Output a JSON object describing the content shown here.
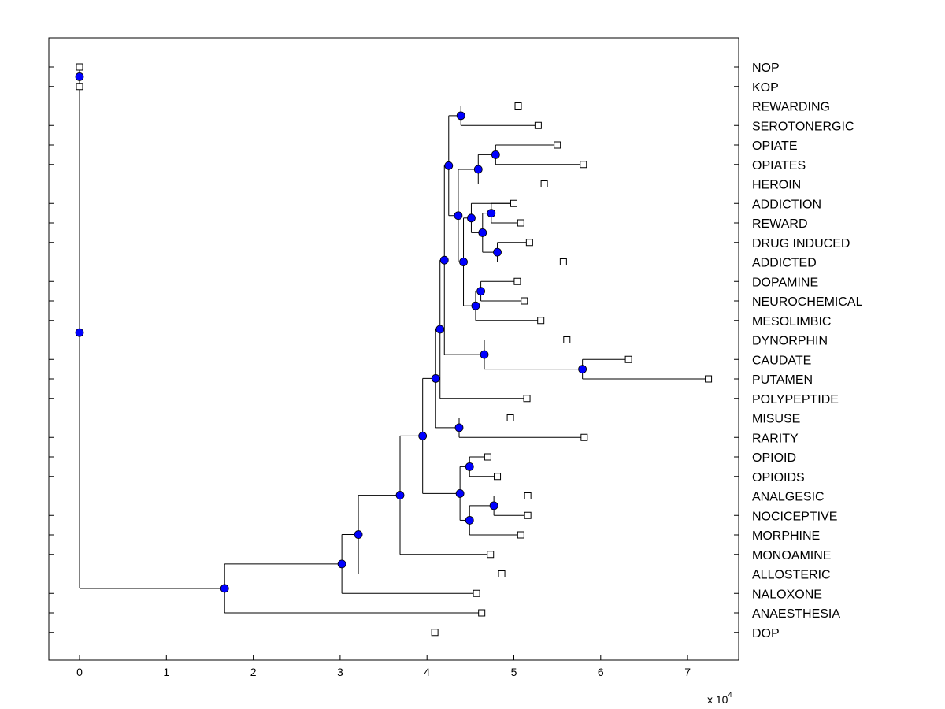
{
  "colors": {
    "node_fill": "#0000ff",
    "line": "#000000",
    "background": "#ffffff"
  },
  "chart_data": {
    "type": "dendrogram",
    "title": "",
    "xlabel": "",
    "ylabel": "",
    "x_scale_label": {
      "base": "x 10",
      "exponent": "4"
    },
    "xlim": [
      -0.35,
      7.6
    ],
    "x_ticks": [
      0,
      1,
      2,
      3,
      4,
      5,
      6,
      7
    ],
    "grid": false,
    "leaves": [
      {
        "label": "NOP",
        "x": 0.0
      },
      {
        "label": "KOP",
        "x": 0.0
      },
      {
        "label": "REWARDING",
        "x": 5.05
      },
      {
        "label": "SEROTONERGIC",
        "x": 5.28
      },
      {
        "label": "OPIATE",
        "x": 5.5
      },
      {
        "label": "OPIATES",
        "x": 5.8
      },
      {
        "label": "HEROIN",
        "x": 5.35
      },
      {
        "label": "ADDICTION",
        "x": 5.0
      },
      {
        "label": "REWARD",
        "x": 5.08
      },
      {
        "label": "DRUG INDUCED",
        "x": 5.18
      },
      {
        "label": "ADDICTED",
        "x": 5.57
      },
      {
        "label": "DOPAMINE",
        "x": 5.04
      },
      {
        "label": "NEUROCHEMICAL",
        "x": 5.12
      },
      {
        "label": "MESOLIMBIC",
        "x": 5.31
      },
      {
        "label": "DYNORPHIN",
        "x": 5.61
      },
      {
        "label": "CAUDATE",
        "x": 6.32
      },
      {
        "label": "PUTAMEN",
        "x": 7.24
      },
      {
        "label": "POLYPEPTIDE",
        "x": 5.15
      },
      {
        "label": "MISUSE",
        "x": 4.96
      },
      {
        "label": "RARITY",
        "x": 5.81
      },
      {
        "label": "OPIOID",
        "x": 4.7
      },
      {
        "label": "OPIOIDS",
        "x": 4.81
      },
      {
        "label": "ANALGESIC",
        "x": 5.16
      },
      {
        "label": "NOCICEPTIVE",
        "x": 5.16
      },
      {
        "label": "MORPHINE",
        "x": 5.08
      },
      {
        "label": "MONOAMINE",
        "x": 4.73
      },
      {
        "label": "ALLOSTERIC",
        "x": 4.86
      },
      {
        "label": "NALOXONE",
        "x": 4.57
      },
      {
        "label": "ANAESTHESIA",
        "x": 4.63
      },
      {
        "label": "DOP",
        "x": 4.09
      }
    ],
    "nodes": [
      {
        "id": "n_nop_kop",
        "x": 0.0,
        "children": [
          "L0",
          "L1"
        ]
      },
      {
        "id": "n_rew_ser",
        "x": 4.39,
        "children": [
          "L2",
          "L3"
        ]
      },
      {
        "id": "n_opiate_opiates",
        "x": 4.79,
        "children": [
          "L4",
          "L5"
        ]
      },
      {
        "id": "n_op_heroin",
        "x": 4.59,
        "children": [
          "n_opiate_opiates",
          "L6"
        ]
      },
      {
        "id": "n_rew_add",
        "x": 4.74,
        "children": [
          "L7",
          "L8"
        ]
      },
      {
        "id": "n_drug_addicted",
        "x": 4.81,
        "children": [
          "L9",
          "L10"
        ]
      },
      {
        "id": "n_addiction_group",
        "x": 4.64,
        "children": [
          "n_rew_add",
          "n_drug_addicted"
        ]
      },
      {
        "id": "n_addiction_parent",
        "x": 4.51,
        "children": [
          "L7",
          "n_addiction_group"
        ]
      },
      {
        "id": "n_dop_neuro",
        "x": 4.62,
        "children": [
          "L11",
          "L12"
        ]
      },
      {
        "id": "n_dop_meso",
        "x": 4.56,
        "children": [
          "n_dop_neuro",
          "L13"
        ]
      },
      {
        "id": "n_add_dop",
        "x": 4.42,
        "children": [
          "n_addiction_parent",
          "n_dop_meso"
        ]
      },
      {
        "id": "n_heroin_group",
        "x": 4.36,
        "children": [
          "n_op_heroin",
          "n_add_dop"
        ]
      },
      {
        "id": "n_rew_top",
        "x": 4.25,
        "children": [
          "n_rew_ser",
          "n_heroin_group"
        ]
      },
      {
        "id": "n_caud_put",
        "x": 5.79,
        "children": [
          "L15",
          "L16"
        ]
      },
      {
        "id": "n_dyn_caud",
        "x": 4.66,
        "children": [
          "L14",
          "n_caud_put"
        ]
      },
      {
        "id": "n_upper",
        "x": 4.2,
        "children": [
          "n_rew_top",
          "n_dyn_caud"
        ]
      },
      {
        "id": "n_poly",
        "x": 4.15,
        "children": [
          "n_upper",
          "L17"
        ]
      },
      {
        "id": "n_misuse_rarity",
        "x": 4.37,
        "children": [
          "L18",
          "L19"
        ]
      },
      {
        "id": "n_mid",
        "x": 4.1,
        "children": [
          "n_poly",
          "n_misuse_rarity"
        ]
      },
      {
        "id": "n_opioid_pair",
        "x": 4.49,
        "children": [
          "L20",
          "L21"
        ]
      },
      {
        "id": "n_analg_noci",
        "x": 4.77,
        "children": [
          "L22",
          "L23"
        ]
      },
      {
        "id": "n_noci_morph",
        "x": 4.49,
        "children": [
          "n_analg_noci",
          "L24"
        ]
      },
      {
        "id": "n_opioid_group",
        "x": 4.38,
        "children": [
          "n_opioid_pair",
          "n_noci_morph"
        ]
      },
      {
        "id": "n_main",
        "x": 3.95,
        "children": [
          "n_mid",
          "n_opioid_group"
        ]
      },
      {
        "id": "n_mono",
        "x": 3.69,
        "children": [
          "n_main",
          "L25"
        ]
      },
      {
        "id": "n_allo",
        "x": 3.21,
        "children": [
          "n_mono",
          "L26"
        ]
      },
      {
        "id": "n_nalox",
        "x": 3.02,
        "children": [
          "n_allo",
          "L27"
        ]
      },
      {
        "id": "n_anaes",
        "x": 1.67,
        "children": [
          "n_nalox",
          "L28"
        ]
      },
      {
        "id": "n_root",
        "x": 0.0,
        "children": [
          "n_nop_kop",
          "n_anaes"
        ]
      }
    ]
  }
}
